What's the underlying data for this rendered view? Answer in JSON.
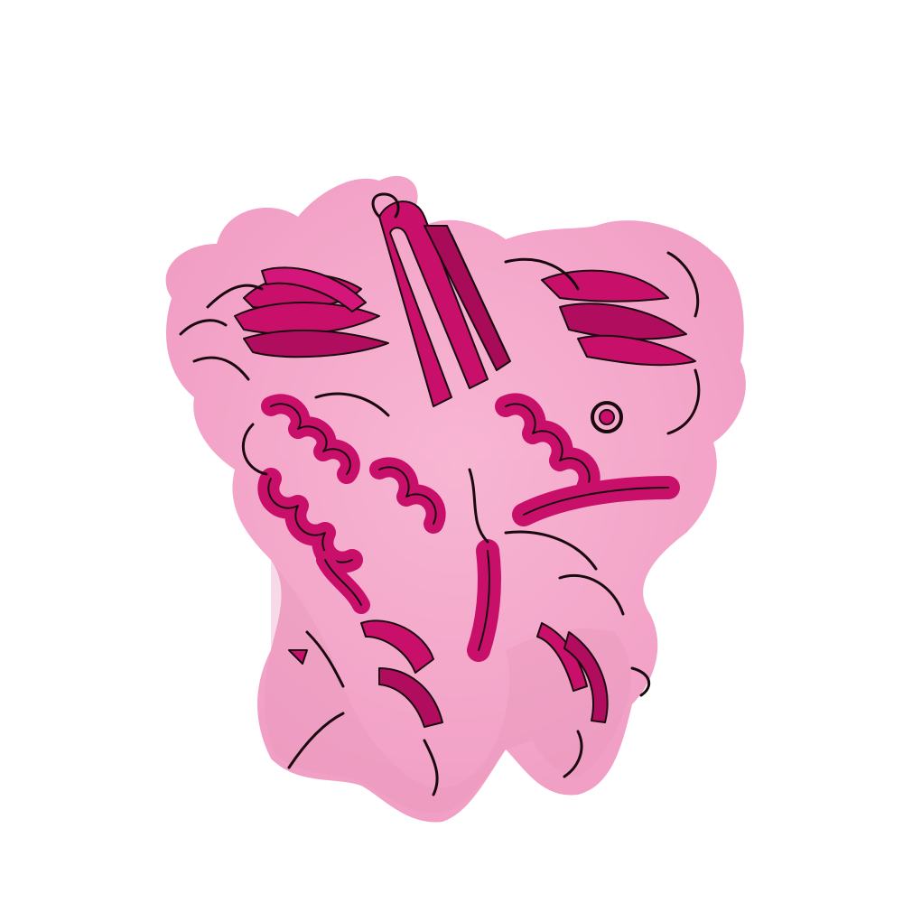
{
  "scene": {
    "subject": "protein-structure-render",
    "representations": [
      "transparent-surface",
      "cartoon"
    ],
    "colors": {
      "background": "#ffffff",
      "surface": "#f06aa8",
      "surface_shade": "#d9558f",
      "cartoon": "#c8106a",
      "cartoon_dark": "#8a0a48",
      "outline": "#1a0a10"
    },
    "surface_opacity": 0.62
  }
}
